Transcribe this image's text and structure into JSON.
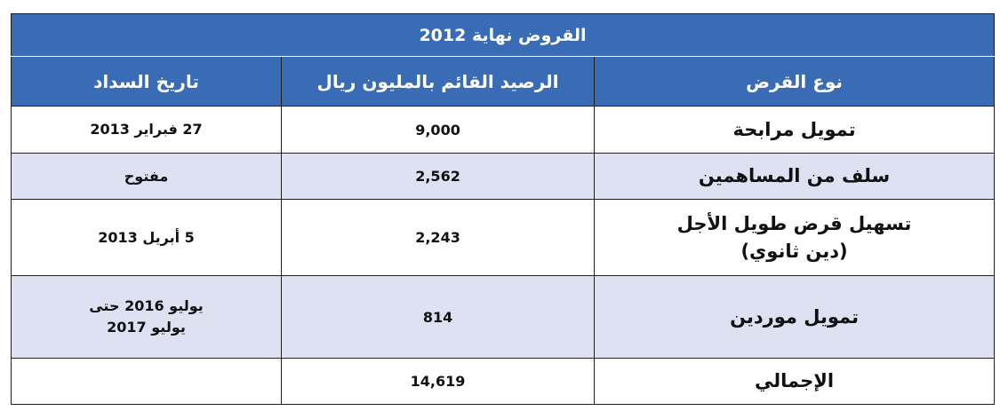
{
  "table": {
    "title": "القروض نهاية 2012",
    "headers": {
      "loan_type": "نوع القرض",
      "balance": "الرصيد القائم بالمليون ريال",
      "repayment_date": "تاريخ السداد"
    },
    "rows": [
      {
        "loan_type": [
          "تمويل مرابحة"
        ],
        "balance": "9,000",
        "repayment_date": [
          "27 فبراير 2013"
        ]
      },
      {
        "loan_type": [
          "سلف من المساهمين"
        ],
        "balance": "2,562",
        "repayment_date": [
          "مفتوح"
        ]
      },
      {
        "loan_type": [
          "تسهيل قرض طويل الأجل",
          "(دين ثانوي)"
        ],
        "balance": "2,243",
        "repayment_date": [
          "5 أبريل 2013"
        ]
      },
      {
        "loan_type": [
          "تمويل موردين"
        ],
        "balance": "814",
        "repayment_date": [
          "يوليو 2016 حتى",
          "يوليو 2017"
        ]
      },
      {
        "loan_type": [
          "الإجمالي"
        ],
        "balance": "14,619",
        "repayment_date": [
          ""
        ]
      }
    ]
  },
  "colors": {
    "header_bg": "#3a6bb5",
    "alt_row_bg": "#dde1f2"
  }
}
